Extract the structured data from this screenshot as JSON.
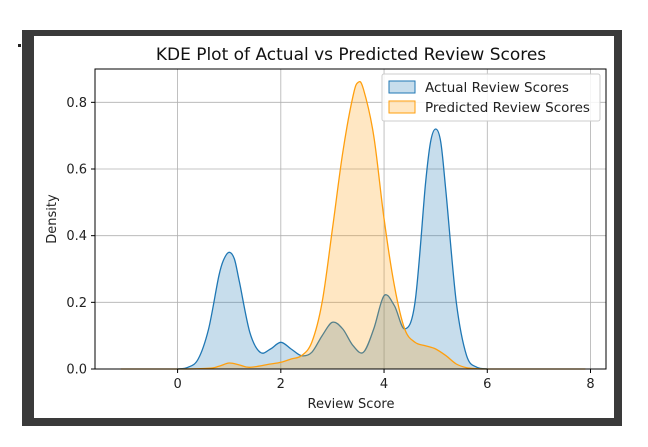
{
  "chart_data": {
    "type": "area",
    "title": "KDE Plot of Actual vs Predicted Review Scores",
    "xlabel": "Review Score",
    "ylabel": "Density",
    "xlim": [
      -1.6,
      8.3
    ],
    "ylim": [
      0,
      0.9
    ],
    "xticks": [
      0,
      2,
      4,
      6,
      8
    ],
    "yticks": [
      0.0,
      0.2,
      0.4,
      0.6,
      0.8
    ],
    "xtick_labels": [
      "0",
      "2",
      "4",
      "6",
      "8"
    ],
    "ytick_labels": [
      "0.0",
      "0.2",
      "0.4",
      "0.6",
      "0.8"
    ],
    "grid": true,
    "legend_position": "top-right",
    "series": [
      {
        "name": "Actual Review Scores",
        "color": "#1f77b4",
        "fill": "#a6c8e6",
        "x": [
          0.0,
          0.2,
          0.4,
          0.6,
          0.8,
          0.9,
          1.0,
          1.1,
          1.2,
          1.4,
          1.6,
          1.8,
          2.0,
          2.2,
          2.4,
          2.6,
          2.8,
          3.0,
          3.2,
          3.4,
          3.6,
          3.8,
          4.0,
          4.2,
          4.4,
          4.6,
          4.8,
          4.9,
          5.0,
          5.1,
          5.2,
          5.4,
          5.6,
          5.8,
          6.0
        ],
        "y": [
          0.0,
          0.005,
          0.03,
          0.12,
          0.28,
          0.33,
          0.35,
          0.33,
          0.26,
          0.11,
          0.05,
          0.06,
          0.08,
          0.06,
          0.04,
          0.05,
          0.1,
          0.14,
          0.12,
          0.07,
          0.05,
          0.12,
          0.22,
          0.19,
          0.12,
          0.2,
          0.55,
          0.68,
          0.72,
          0.68,
          0.53,
          0.2,
          0.04,
          0.005,
          0.0
        ]
      },
      {
        "name": "Predicted Review Scores",
        "color": "#ff9f0e",
        "fill": "#ffe0a8",
        "x": [
          -1.1,
          0.0,
          0.6,
          0.8,
          1.0,
          1.2,
          1.4,
          1.8,
          2.0,
          2.2,
          2.4,
          2.6,
          2.8,
          3.0,
          3.2,
          3.4,
          3.5,
          3.6,
          3.8,
          4.0,
          4.2,
          4.4,
          4.6,
          4.8,
          5.0,
          5.2,
          5.4,
          5.6,
          5.8,
          6.0,
          7.0,
          7.9
        ],
        "y": [
          0.0,
          0.0,
          0.002,
          0.008,
          0.018,
          0.012,
          0.005,
          0.015,
          0.02,
          0.03,
          0.04,
          0.08,
          0.2,
          0.42,
          0.65,
          0.82,
          0.86,
          0.84,
          0.7,
          0.45,
          0.25,
          0.12,
          0.08,
          0.07,
          0.06,
          0.04,
          0.015,
          0.004,
          0.001,
          0.0,
          0.0,
          0.0
        ]
      }
    ]
  }
}
